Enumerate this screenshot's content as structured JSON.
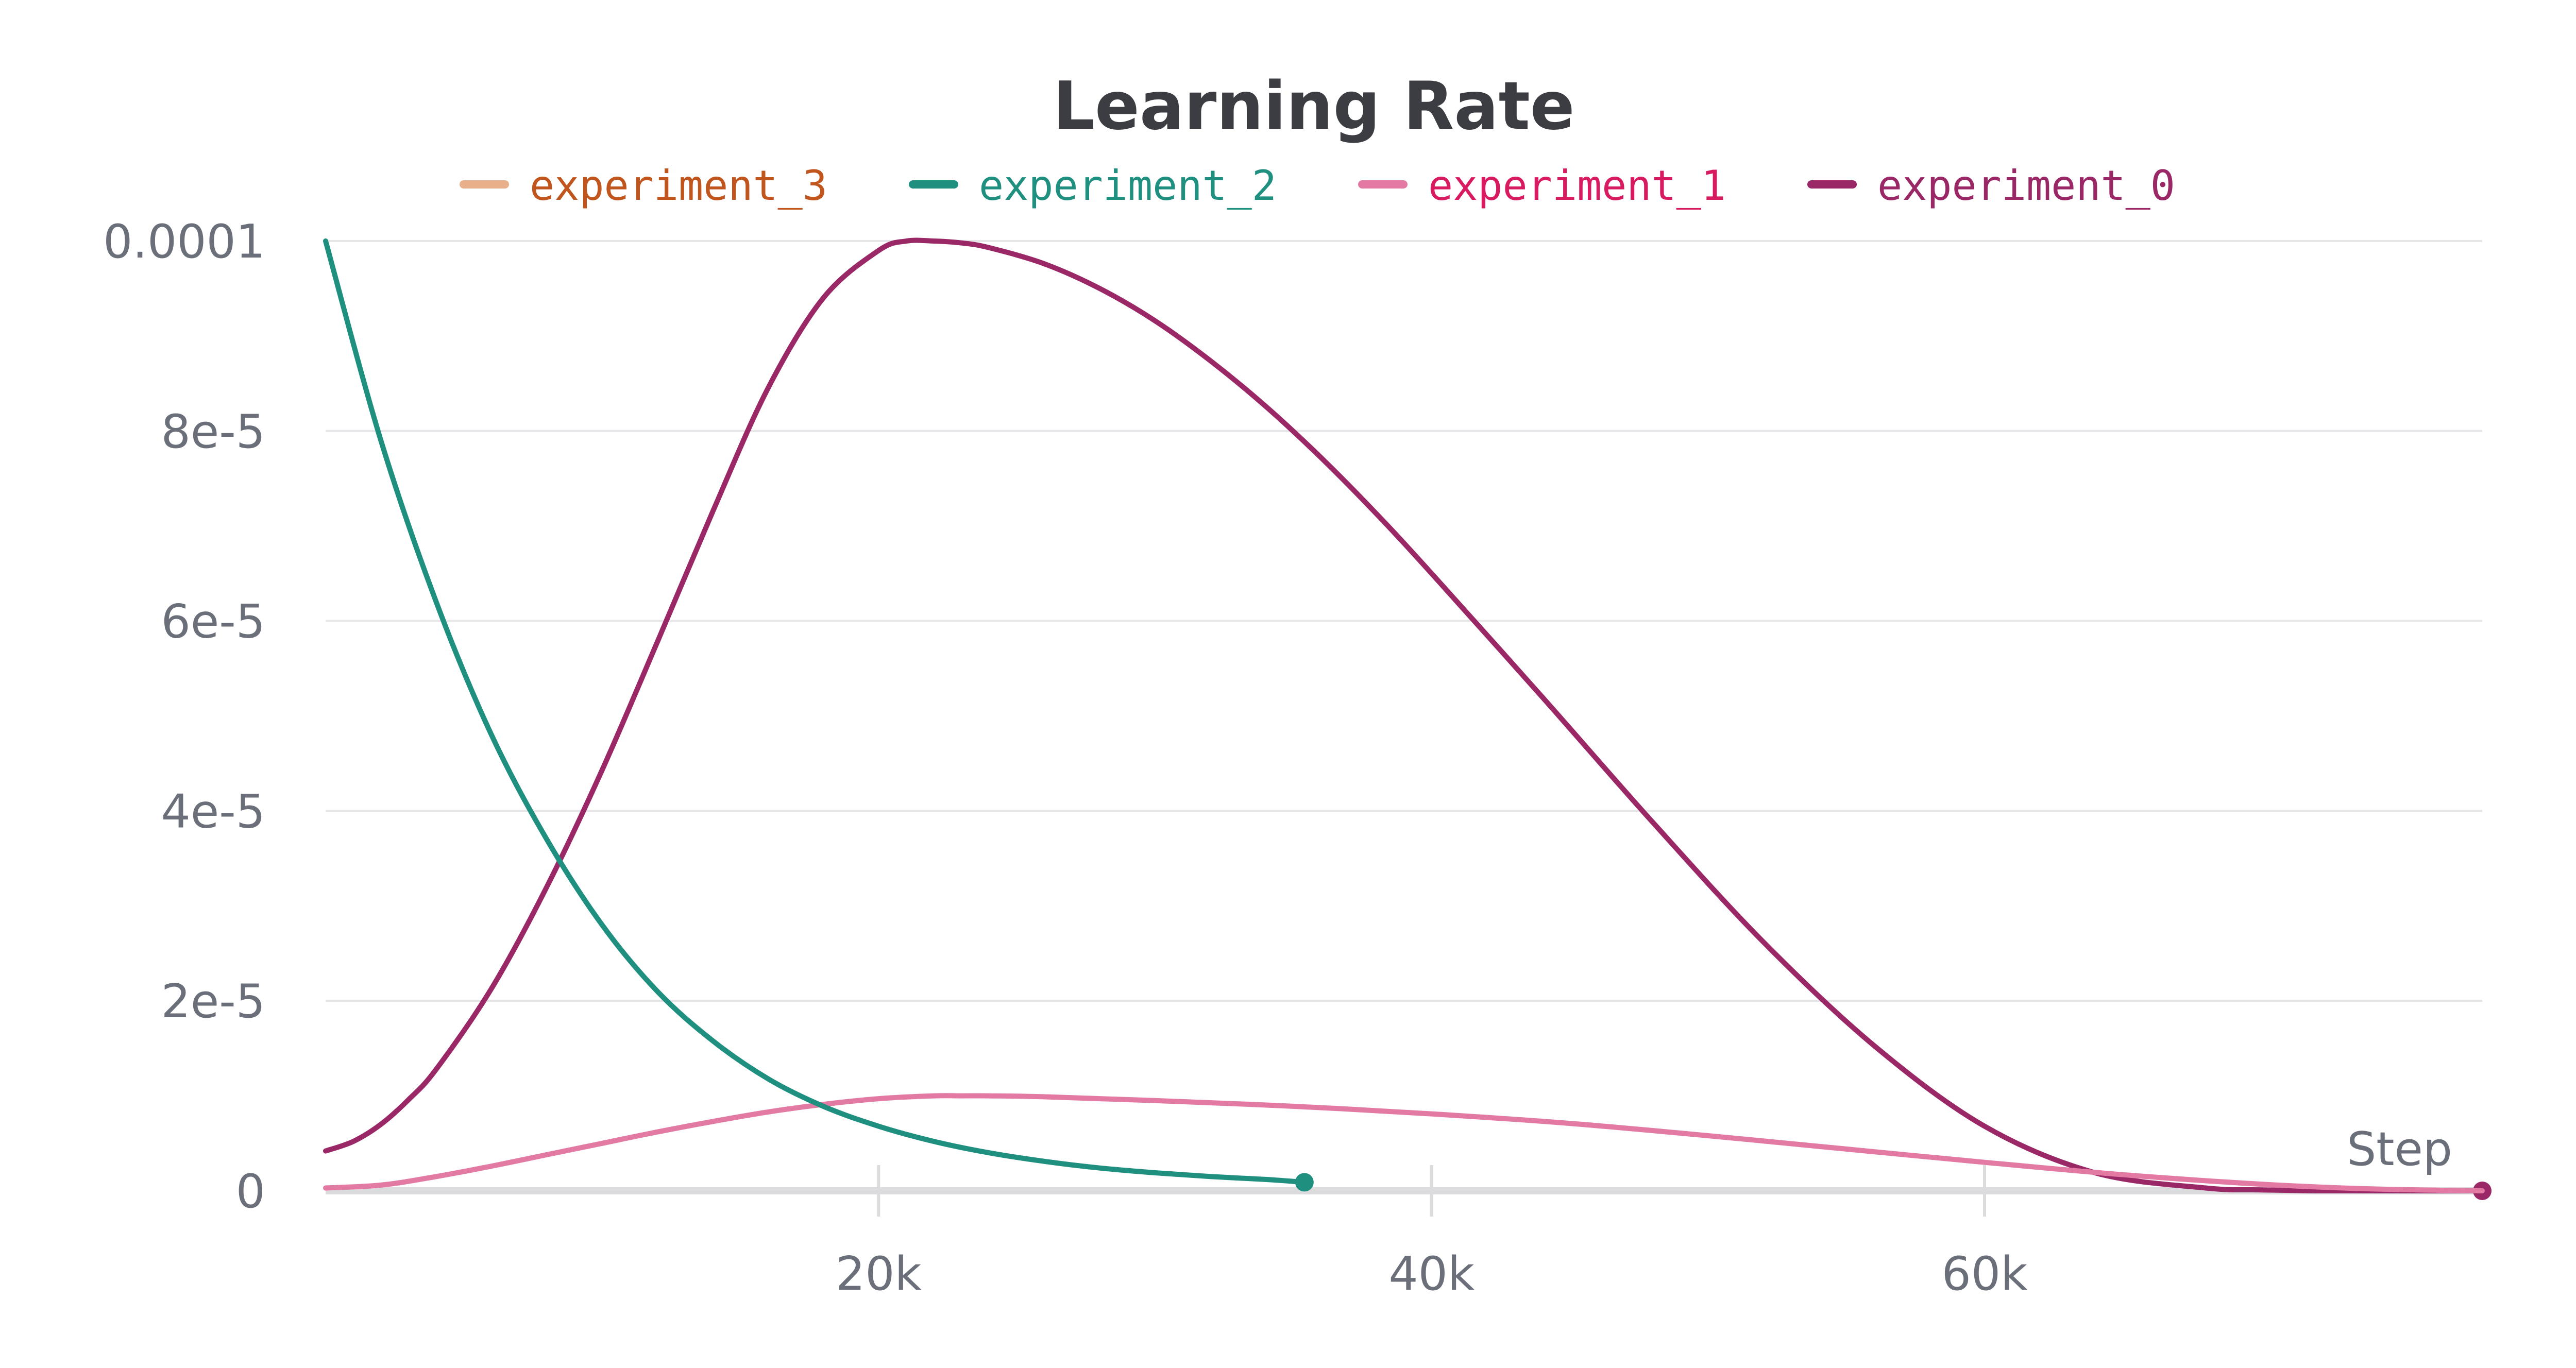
{
  "chart_data": {
    "type": "line",
    "title": "Learning Rate",
    "xlabel": "Step",
    "ylabel": "",
    "xlim": [
      0,
      78000
    ],
    "ylim": [
      0,
      0.0001
    ],
    "x_ticks": [
      {
        "value": 20000,
        "label": "20k"
      },
      {
        "value": 40000,
        "label": "40k"
      },
      {
        "value": 60000,
        "label": "60k"
      }
    ],
    "y_ticks": [
      {
        "value": 0,
        "label": "0"
      },
      {
        "value": 2e-05,
        "label": "2e-5"
      },
      {
        "value": 4e-05,
        "label": "4e-5"
      },
      {
        "value": 6e-05,
        "label": "6e-5"
      },
      {
        "value": 8e-05,
        "label": "8e-5"
      },
      {
        "value": 0.0001,
        "label": "0.0001"
      }
    ],
    "grid": true,
    "legend_position": "top-center",
    "series": [
      {
        "name": "experiment_3",
        "color": "#e8b08a",
        "label_color": "#c0561e",
        "x": [],
        "y": []
      },
      {
        "name": "experiment_2",
        "color": "#1f8f80",
        "label_color": "#1f8f80",
        "end_marker": true,
        "x": [
          0,
          2000,
          4000,
          6000,
          8000,
          10000,
          12000,
          14000,
          16000,
          18000,
          20000,
          22000,
          24000,
          26000,
          28000,
          30000,
          32000,
          34000,
          35400
        ],
        "y": [
          0.0001,
          7.9e-05,
          6.2e-05,
          4.8e-05,
          3.7e-05,
          2.8e-05,
          2.1e-05,
          1.58e-05,
          1.18e-05,
          8.9e-06,
          6.8e-06,
          5.2e-06,
          4e-06,
          3.1e-06,
          2.4e-06,
          1.9e-06,
          1.5e-06,
          1.2e-06,
          9e-07
        ]
      },
      {
        "name": "experiment_1",
        "color": "#e27aa3",
        "label_color": "#d81b60",
        "x": [
          0,
          2000,
          4000,
          6000,
          8000,
          10000,
          12000,
          14000,
          16000,
          18000,
          20000,
          22000,
          23000,
          24000,
          26000,
          30000,
          35000,
          40000,
          45000,
          50000,
          55000,
          60000,
          65000,
          70000,
          74000,
          78000
        ],
        "y": [
          3e-07,
          6e-07,
          1.5e-06,
          2.6e-06,
          3.8e-06,
          5e-06,
          6.2e-06,
          7.3e-06,
          8.3e-06,
          9.1e-06,
          9.7e-06,
          1e-05,
          1e-05,
          1e-05,
          9.9e-06,
          9.5e-06,
          8.9e-06,
          8.1e-06,
          7.1e-06,
          5.8e-06,
          4.4e-06,
          3e-06,
          1.7e-06,
          7e-07,
          2e-07,
          0
        ]
      },
      {
        "name": "experiment_0",
        "color": "#9a2766",
        "label_color": "#9a2766",
        "end_marker": true,
        "x": [
          0,
          1000,
          2000,
          3000,
          4000,
          6000,
          8000,
          10000,
          12000,
          14000,
          16000,
          18000,
          20000,
          21000,
          22000,
          23000,
          24000,
          26000,
          28000,
          30000,
          32000,
          34000,
          36000,
          38000,
          40000,
          44000,
          48000,
          52000,
          56000,
          60000,
          64000,
          68000,
          70000,
          72000,
          74000,
          76000,
          78000
        ],
        "y": [
          4.2e-06,
          5.2e-06,
          7e-06,
          9.6e-06,
          1.28e-05,
          2.13e-05,
          3.2e-05,
          4.43e-05,
          5.78e-05,
          7.15e-05,
          8.45e-05,
          9.4e-05,
          9.9e-05,
          0.0001,
          0.0001,
          9.98e-05,
          9.93e-05,
          9.76e-05,
          9.5e-05,
          9.16e-05,
          8.74e-05,
          8.26e-05,
          7.72e-05,
          7.13e-05,
          6.5e-05,
          5.2e-05,
          3.88e-05,
          2.62e-05,
          1.53e-05,
          6.8e-06,
          1.9e-06,
          3e-07,
          1e-07,
          0,
          0,
          0,
          0
        ]
      }
    ]
  }
}
